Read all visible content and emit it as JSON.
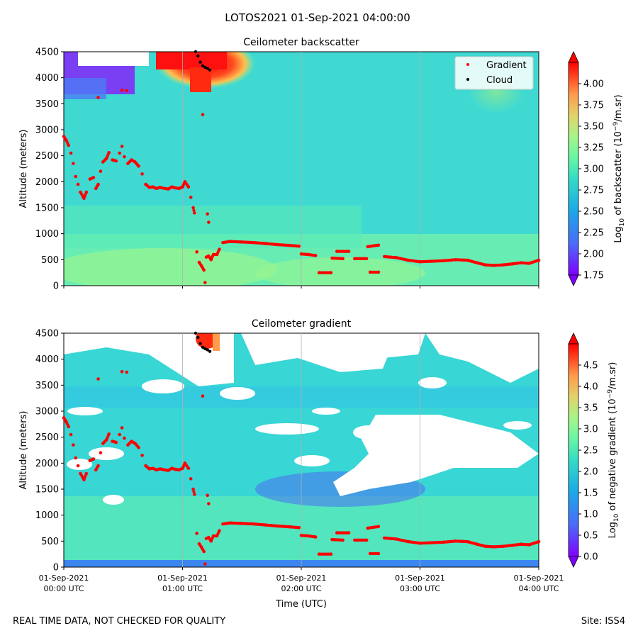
{
  "title": "LOTOS2021 01-Sep-2021 04:00:00",
  "footer_left": "REAL TIME DATA, NOT CHECKED FOR QUALITY",
  "footer_right": "Site: ISS4",
  "chart_data": [
    {
      "type": "heatmap",
      "title": "Ceilometer backscatter",
      "ylabel": "Altitude (meters)",
      "xlabel": "",
      "ylim": [
        0,
        4500
      ],
      "xlim_hours": [
        0,
        4
      ],
      "yticks": [
        0,
        500,
        1000,
        1500,
        2000,
        2500,
        3000,
        3500,
        4000,
        4500
      ],
      "colorbar": {
        "label_pre": "Log",
        "label_sub": "10",
        "label_mid": " of backscatter (10",
        "label_sup": "−9",
        "label_post": "/m.sr)",
        "range": [
          1.75,
          4.25
        ],
        "ticks": [
          "1.75",
          "2.00",
          "2.25",
          "2.50",
          "2.75",
          "3.00",
          "3.25",
          "3.50",
          "3.75",
          "4.00"
        ],
        "colormap": "rainbow"
      },
      "legend": {
        "placement": "top-right",
        "entries": [
          {
            "label": "Gradient",
            "color": "#ff0000"
          },
          {
            "label": "Cloud",
            "color": "#000000"
          }
        ]
      }
    },
    {
      "type": "heatmap",
      "title": "Ceilometer gradient",
      "ylabel": "Altitude (meters)",
      "xlabel": "Time (UTC)",
      "ylim": [
        0,
        4500
      ],
      "xlim_hours": [
        0,
        4
      ],
      "yticks": [
        0,
        500,
        1000,
        1500,
        2000,
        2500,
        3000,
        3500,
        4000,
        4500
      ],
      "xticks": [
        {
          "h": 0,
          "l1": "01-Sep-2021",
          "l2": "00:00 UTC"
        },
        {
          "h": 1,
          "l1": "01-Sep-2021",
          "l2": "01:00 UTC"
        },
        {
          "h": 2,
          "l1": "01-Sep-2021",
          "l2": "02:00 UTC"
        },
        {
          "h": 3,
          "l1": "01-Sep-2021",
          "l2": "03:00 UTC"
        },
        {
          "h": 4,
          "l1": "01-Sep-2021",
          "l2": "04:00 UTC"
        }
      ],
      "colorbar": {
        "label_pre": "Log",
        "label_sub": "10",
        "label_mid": " of negative gradient (10",
        "label_sup": "−9",
        "label_post": "/m.sr)",
        "range": [
          0,
          5
        ],
        "ticks": [
          "0.0",
          "0.5",
          "1.0",
          "1.5",
          "2.0",
          "2.5",
          "3.0",
          "3.5",
          "4.0",
          "4.5"
        ],
        "colormap": "rainbow"
      }
    }
  ],
  "gradient_series": [
    [
      0.0,
      2870
    ],
    [
      0.02,
      2800
    ],
    [
      0.04,
      2700
    ],
    [
      0.06,
      2550
    ],
    [
      0.08,
      2350
    ],
    [
      0.1,
      2100
    ],
    [
      0.12,
      1950
    ],
    [
      0.14,
      1800
    ],
    [
      0.17,
      1680
    ],
    [
      0.19,
      1800
    ],
    [
      0.22,
      2050
    ],
    [
      0.25,
      2080
    ],
    [
      0.27,
      1870
    ],
    [
      0.29,
      1950
    ],
    [
      0.31,
      2200
    ],
    [
      0.33,
      2380
    ],
    [
      0.36,
      2450
    ],
    [
      0.38,
      2560
    ],
    [
      0.41,
      2420
    ],
    [
      0.44,
      2400
    ],
    [
      0.47,
      2550
    ],
    [
      0.49,
      2680
    ],
    [
      0.51,
      2480
    ],
    [
      0.54,
      2350
    ],
    [
      0.57,
      2420
    ],
    [
      0.6,
      2380
    ],
    [
      0.63,
      2300
    ],
    [
      0.66,
      2150
    ],
    [
      0.69,
      1950
    ],
    [
      0.72,
      1890
    ],
    [
      0.75,
      1900
    ],
    [
      0.78,
      1870
    ],
    [
      0.81,
      1890
    ],
    [
      0.85,
      1870
    ],
    [
      0.88,
      1860
    ],
    [
      0.91,
      1900
    ],
    [
      0.94,
      1880
    ],
    [
      0.97,
      1870
    ],
    [
      1.0,
      1900
    ],
    [
      1.02,
      2000
    ],
    [
      1.05,
      1900
    ],
    [
      1.07,
      1700
    ],
    [
      1.09,
      1500
    ],
    [
      1.1,
      1400
    ],
    [
      1.12,
      650
    ],
    [
      1.14,
      450
    ],
    [
      1.16,
      380
    ],
    [
      1.18,
      300
    ],
    [
      1.2,
      550
    ],
    [
      1.22,
      570
    ],
    [
      1.24,
      500
    ],
    [
      1.26,
      600
    ],
    [
      1.29,
      600
    ],
    [
      1.31,
      700
    ],
    [
      1.34,
      830
    ],
    [
      1.4,
      850
    ],
    [
      1.5,
      840
    ],
    [
      1.6,
      830
    ],
    [
      1.7,
      810
    ],
    [
      1.8,
      790
    ],
    [
      1.9,
      775
    ],
    [
      1.98,
      760
    ],
    [
      2.0,
      610
    ],
    [
      2.06,
      600
    ],
    [
      2.12,
      580
    ],
    [
      2.15,
      250
    ],
    [
      2.25,
      250
    ],
    [
      2.26,
      530
    ],
    [
      2.35,
      520
    ],
    [
      2.3,
      660
    ],
    [
      2.4,
      660
    ],
    [
      2.45,
      520
    ],
    [
      2.55,
      520
    ],
    [
      2.56,
      750
    ],
    [
      2.65,
      780
    ],
    [
      2.58,
      260
    ],
    [
      2.65,
      260
    ],
    [
      2.7,
      560
    ],
    [
      2.8,
      540
    ],
    [
      2.9,
      490
    ],
    [
      3.0,
      460
    ],
    [
      3.1,
      470
    ],
    [
      3.2,
      480
    ],
    [
      3.3,
      500
    ],
    [
      3.4,
      490
    ],
    [
      3.48,
      440
    ],
    [
      3.55,
      400
    ],
    [
      3.62,
      390
    ],
    [
      3.7,
      400
    ],
    [
      3.78,
      420
    ],
    [
      3.85,
      440
    ],
    [
      3.92,
      430
    ],
    [
      4.0,
      490
    ]
  ],
  "gradient_outliers": [
    [
      0.29,
      3620
    ],
    [
      0.49,
      3760
    ],
    [
      0.53,
      3750
    ],
    [
      1.17,
      3290
    ],
    [
      1.21,
      1380
    ],
    [
      1.22,
      1220
    ],
    [
      1.19,
      60
    ]
  ],
  "cloud_series": [
    [
      1.11,
      4500
    ],
    [
      1.13,
      4420
    ],
    [
      1.15,
      4300
    ],
    [
      1.17,
      4230
    ],
    [
      1.19,
      4200
    ],
    [
      1.21,
      4180
    ],
    [
      1.23,
      4150
    ]
  ]
}
